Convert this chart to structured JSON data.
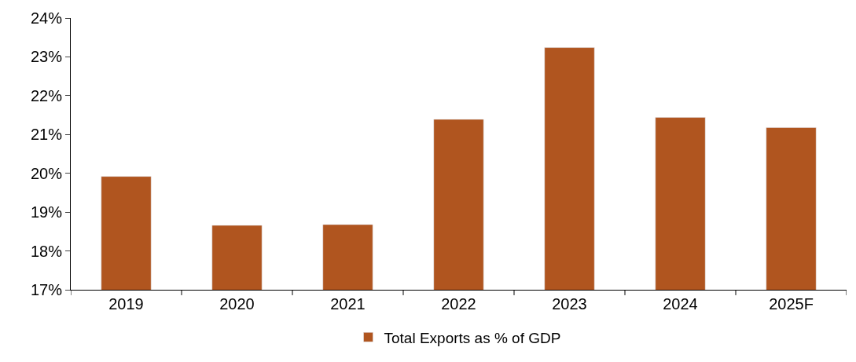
{
  "chart_data": {
    "type": "bar",
    "categories": [
      "2019",
      "2020",
      "2021",
      "2022",
      "2023",
      "2024",
      "2025F"
    ],
    "series": [
      {
        "name": "Total Exports as % of GDP",
        "color": "#b0551f",
        "values": [
          19.92,
          18.66,
          18.68,
          21.39,
          23.24,
          21.44,
          21.18
        ]
      }
    ],
    "ylim": [
      17,
      24
    ],
    "yticks": [
      {
        "value": 17,
        "label": "17%"
      },
      {
        "value": 18,
        "label": "18%"
      },
      {
        "value": 19,
        "label": "19%"
      },
      {
        "value": 20,
        "label": "20%"
      },
      {
        "value": 21,
        "label": "21%"
      },
      {
        "value": 22,
        "label": "22%"
      },
      {
        "value": 23,
        "label": "23%"
      },
      {
        "value": 24,
        "label": "24%"
      }
    ],
    "legend": "bottom"
  }
}
